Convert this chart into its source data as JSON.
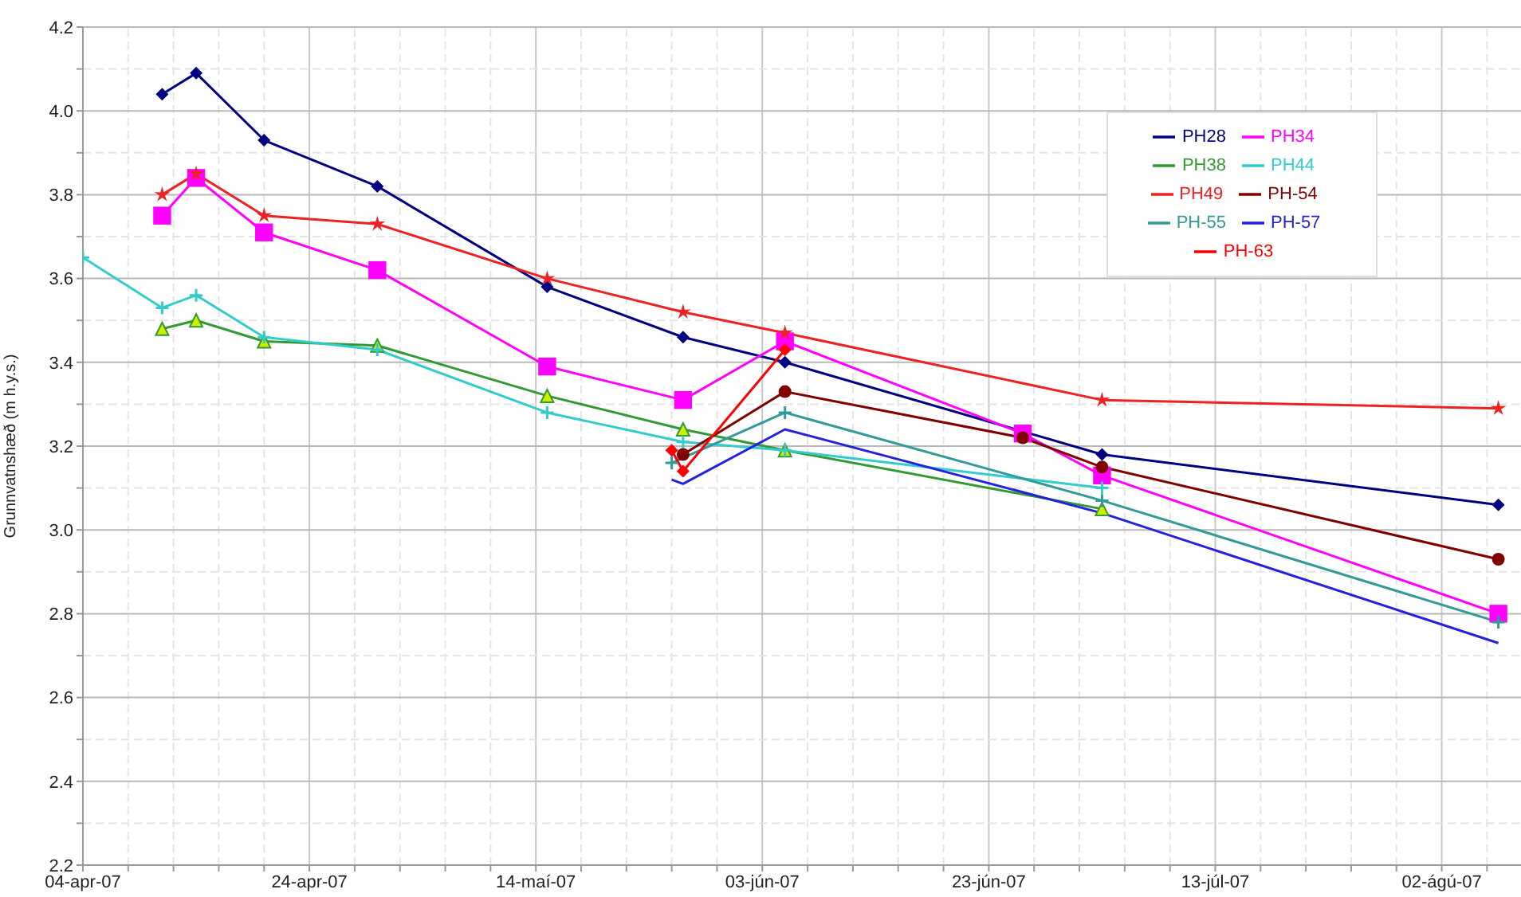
{
  "chart_data": {
    "type": "line",
    "ylabel": "Grunnvatnshæð (m h.y.s.)",
    "xlim": [
      "--04-04",
      "--08-09"
    ],
    "xticks": [
      {
        "value": "--04-04",
        "label": "04-apr-07"
      },
      {
        "value": "--04-08",
        "label": null
      },
      {
        "value": "--04-12",
        "label": null
      },
      {
        "value": "--04-16",
        "label": null
      },
      {
        "value": "--04-20",
        "label": null
      },
      {
        "value": "--04-24",
        "label": "24-apr-07"
      },
      {
        "value": "--04-28",
        "label": null
      },
      {
        "value": "--05-02",
        "label": null
      },
      {
        "value": "--05-06",
        "label": null
      },
      {
        "value": "--05-10",
        "label": null
      },
      {
        "value": "--05-14",
        "label": "14-maí-07"
      },
      {
        "value": "--05-18",
        "label": null
      },
      {
        "value": "--05-22",
        "label": null
      },
      {
        "value": "--05-26",
        "label": null
      },
      {
        "value": "--05-30",
        "label": null
      },
      {
        "value": "--06-03",
        "label": "03-jún-07"
      },
      {
        "value": "--06-07",
        "label": null
      },
      {
        "value": "--06-11",
        "label": null
      },
      {
        "value": "--06-15",
        "label": null
      },
      {
        "value": "--06-19",
        "label": null
      },
      {
        "value": "--06-23",
        "label": "23-jún-07"
      },
      {
        "value": "--06-27",
        "label": null
      },
      {
        "value": "--07-01",
        "label": null
      },
      {
        "value": "--07-05",
        "label": null
      },
      {
        "value": "--07-09",
        "label": null
      },
      {
        "value": "--07-13",
        "label": "13-júl-07"
      },
      {
        "value": "--07-17",
        "label": null
      },
      {
        "value": "--07-21",
        "label": null
      },
      {
        "value": "--07-25",
        "label": null
      },
      {
        "value": "--07-29",
        "label": null
      },
      {
        "value": "--08-02",
        "label": "02-ágú-07"
      },
      {
        "value": "--08-06",
        "label": null
      }
    ],
    "ylim": [
      2.2,
      4.2
    ],
    "yticks": [
      2.2,
      {
        "value": 2.3,
        "label": null
      },
      2.4,
      {
        "value": 2.5,
        "label": null
      },
      2.6,
      {
        "value": 2.7,
        "label": null
      },
      2.8,
      {
        "value": 2.9,
        "label": null
      },
      {
        "value": 3,
        "label": "3.0"
      },
      {
        "value": 3.1,
        "label": null
      },
      3.2,
      {
        "value": 3.3,
        "label": null
      },
      3.4,
      {
        "value": 3.5,
        "label": null
      },
      3.6,
      {
        "value": 3.7,
        "label": null
      },
      3.8,
      {
        "value": 3.9,
        "label": null
      },
      {
        "value": 4,
        "label": "4.0"
      },
      {
        "value": 4.1,
        "label": null
      },
      4.2
    ],
    "grid": true,
    "legend": "top right",
    "series": [
      {
        "name": "PH28",
        "color": "#000080",
        "marker": "diamond",
        "x": [
          "--04-11",
          "--04-14",
          "--04-20",
          "--04-30",
          "--05-15",
          "--05-27",
          "--06-05",
          "--07-03",
          "--08-07"
        ],
        "values": [
          4.04,
          4.09,
          3.93,
          3.82,
          3.58,
          3.46,
          3.4,
          3.18,
          3.06
        ]
      },
      {
        "name": "PH34",
        "color": "#ff00ff",
        "marker": "square",
        "x": [
          "--04-11",
          "--04-14",
          "--04-20",
          "--04-30",
          "--05-15",
          "--05-27",
          "--06-05",
          "--06-26",
          "--07-03",
          "--08-07"
        ],
        "values": [
          3.75,
          3.84,
          3.71,
          3.62,
          3.39,
          3.31,
          3.45,
          3.23,
          3.13,
          2.8
        ]
      },
      {
        "name": "PH38",
        "color": "#339933",
        "marker": "triangle",
        "x": [
          "--04-11",
          "--04-14",
          "--04-20",
          "--04-30",
          "--05-15",
          "--05-27",
          "--06-05",
          "--07-03"
        ],
        "values": [
          3.48,
          3.5,
          3.45,
          3.44,
          3.32,
          3.24,
          3.19,
          3.05
        ]
      },
      {
        "name": "PH44",
        "color": "#33cccc",
        "marker": "cross",
        "x": [
          "--04-04",
          "--04-11",
          "--04-14",
          "--04-20",
          "--04-30",
          "--05-15",
          "--05-27",
          "--06-05",
          "--07-03"
        ],
        "values": [
          3.65,
          3.53,
          3.56,
          3.46,
          3.43,
          3.28,
          3.21,
          3.19,
          3.1
        ]
      },
      {
        "name": "PH49",
        "color": "#ee2222",
        "marker": "star",
        "x": [
          "--04-11",
          "--04-14",
          "--04-20",
          "--04-30",
          "--05-15",
          "--05-27",
          "--06-05",
          "--07-03",
          "--08-07"
        ],
        "values": [
          3.8,
          3.85,
          3.75,
          3.73,
          3.6,
          3.52,
          3.47,
          3.31,
          3.29
        ]
      },
      {
        "name": "PH-54",
        "color": "#800000",
        "marker": "circle",
        "x": [
          "--05-27",
          "--06-05",
          "--06-26",
          "--07-03",
          "--08-07"
        ],
        "values": [
          3.18,
          3.33,
          3.22,
          3.15,
          2.93
        ]
      },
      {
        "name": "PH-55",
        "color": "#339999",
        "marker": "cross",
        "x": [
          "--05-26",
          "--06-05",
          "--07-03",
          "--08-07"
        ],
        "values": [
          3.16,
          3.28,
          3.07,
          2.78
        ]
      },
      {
        "name": "PH-57",
        "color": "#2222dd",
        "marker": "none",
        "x": [
          "--05-26",
          "--05-27",
          "--06-05",
          "--07-03",
          "--08-07"
        ],
        "values": [
          3.12,
          3.11,
          3.24,
          3.04,
          2.73
        ]
      },
      {
        "name": "PH-63",
        "color": "#ff0000",
        "marker": "diamond",
        "x": [
          "--05-26",
          "--05-27",
          "--06-05"
        ],
        "values": [
          3.19,
          3.14,
          3.43
        ]
      }
    ]
  }
}
